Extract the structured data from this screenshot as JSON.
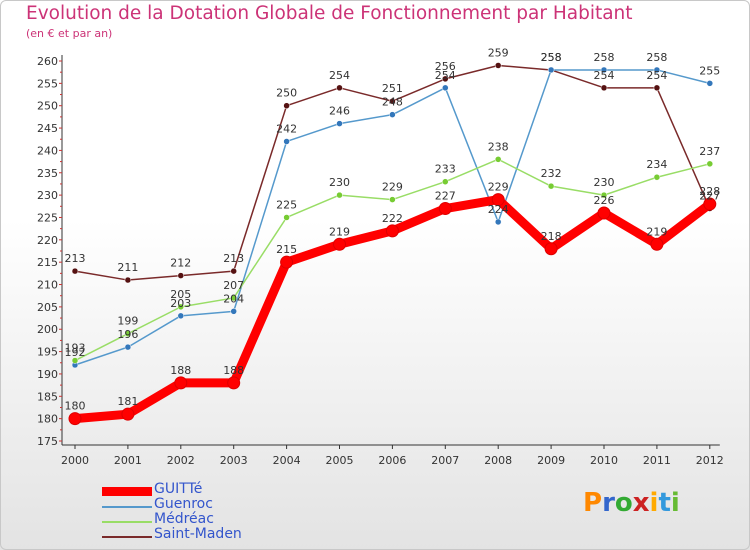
{
  "chart_data": {
    "type": "line",
    "title": "Evolution de la Dotation Globale de Fonctionnement par Habitant",
    "subtitle": "(en € et par an)",
    "categories": [
      "2000",
      "2001",
      "2002",
      "2003",
      "2004",
      "2005",
      "2006",
      "2007",
      "2008",
      "2009",
      "2010",
      "2011",
      "2012"
    ],
    "ylim": [
      175,
      260
    ],
    "yticks": [
      175,
      180,
      185,
      190,
      195,
      200,
      205,
      210,
      215,
      220,
      225,
      230,
      235,
      240,
      245,
      250,
      255,
      260
    ],
    "grid": false,
    "legend_position": "bottom-left",
    "series": [
      {
        "name": "GUITTé",
        "color": "#ff0000",
        "marker": "#ff0000",
        "values": [
          180,
          181,
          188,
          188,
          215,
          219,
          222,
          227,
          229,
          218,
          226,
          219,
          228
        ]
      },
      {
        "name": "Guenroc",
        "color": "#5599cc",
        "marker": "#3377bb",
        "values": [
          192,
          196,
          203,
          204,
          242,
          246,
          248,
          254,
          224,
          258,
          258,
          258,
          255
        ]
      },
      {
        "name": "Médréac",
        "color": "#99dd66",
        "marker": "#77cc33",
        "values": [
          193,
          199,
          205,
          207,
          225,
          230,
          229,
          233,
          238,
          232,
          230,
          234,
          237
        ]
      },
      {
        "name": "Saint-Maden",
        "color": "#7a2a2a",
        "marker": "#551111",
        "values": [
          213,
          211,
          212,
          213,
          250,
          254,
          251,
          256,
          259,
          258,
          254,
          254,
          227
        ]
      }
    ]
  },
  "logo": {
    "letters": [
      "P",
      "r",
      "o",
      "x",
      "i",
      "t",
      "i"
    ]
  }
}
